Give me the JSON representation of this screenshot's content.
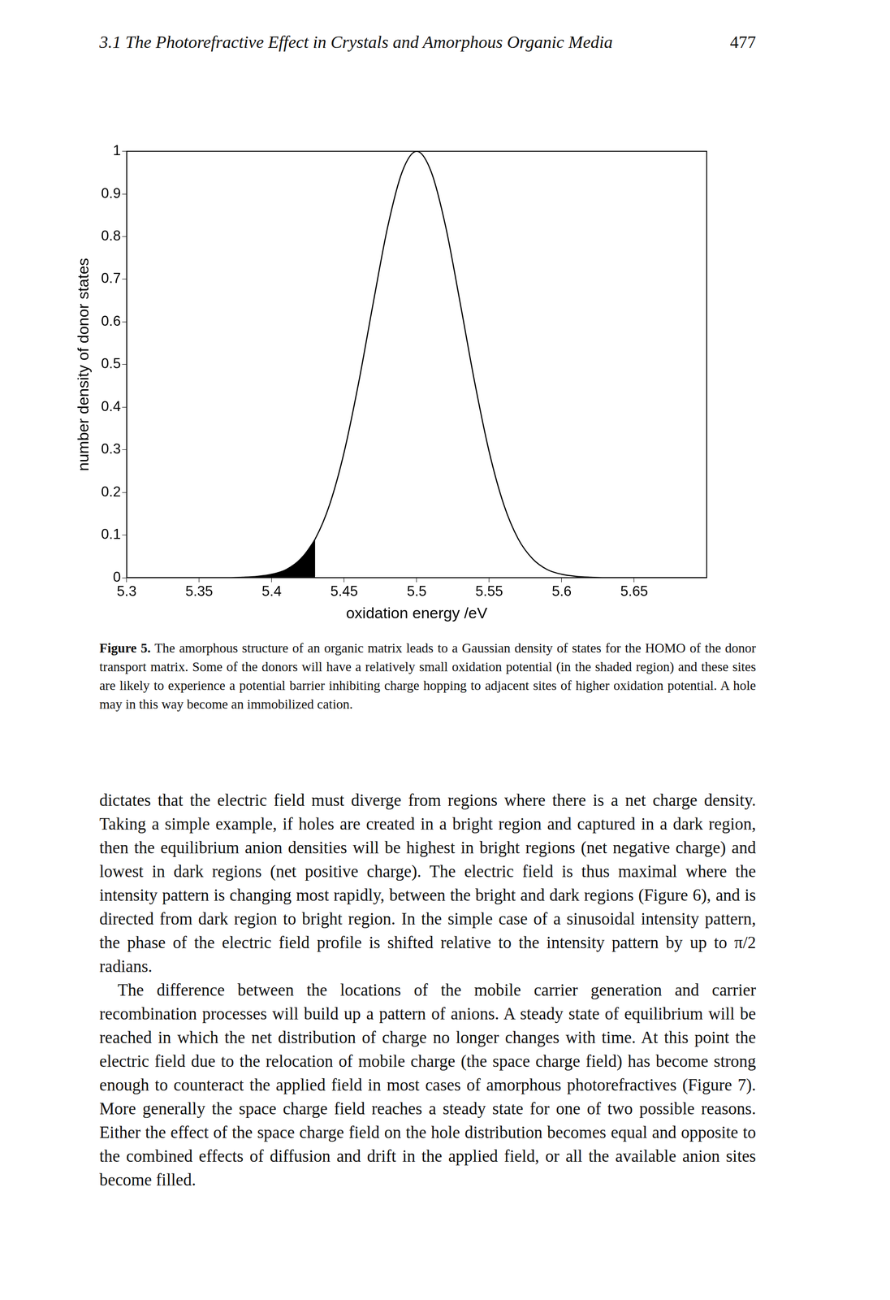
{
  "header": {
    "title": "3.1 The Photorefractive Effect in Crystals and Amorphous Organic Media",
    "page": 477
  },
  "chart_data": {
    "type": "line",
    "xlabel": "oxidation energy /eV",
    "ylabel": "number density of donor states",
    "x": [
      5.3,
      5.31,
      5.32,
      5.33,
      5.34,
      5.35,
      5.36,
      5.37,
      5.38,
      5.39,
      5.4,
      5.41,
      5.42,
      5.43,
      5.44,
      5.45,
      5.46,
      5.47,
      5.48,
      5.49,
      5.5,
      5.51,
      5.52,
      5.53,
      5.54,
      5.55,
      5.56,
      5.57,
      5.58,
      5.59,
      5.6,
      5.61,
      5.62,
      5.63,
      5.64,
      5.65,
      5.66,
      5.67,
      5.68,
      5.69,
      5.7
    ],
    "values": [
      0,
      0,
      0,
      0,
      0,
      0,
      0,
      0,
      0.001,
      0.003,
      0.008,
      0.019,
      0.044,
      0.091,
      0.172,
      0.295,
      0.458,
      0.644,
      0.823,
      0.952,
      1,
      0.952,
      0.823,
      0.644,
      0.458,
      0.295,
      0.172,
      0.091,
      0.044,
      0.019,
      0.008,
      0.003,
      0.001,
      0,
      0,
      0,
      0,
      0,
      0,
      0,
      0
    ],
    "color": "#000000",
    "shaded_region": {
      "from": 5.3,
      "to": 5.43,
      "color": "#000000"
    },
    "xlim": [
      5.3,
      5.7
    ],
    "ylim": [
      0,
      1
    ],
    "xticks": [
      5.3,
      5.35,
      5.4,
      5.45,
      5.5,
      5.55,
      5.6,
      5.65
    ],
    "yticks": [
      0,
      0.1,
      0.2,
      0.3,
      0.4,
      0.5,
      0.6,
      0.7,
      0.8,
      0.9,
      1
    ],
    "grid": false
  },
  "caption": {
    "label": "Figure 5.",
    "text": "The amorphous structure of an organic matrix leads to a Gaussian density of states for the HOMO of the donor transport matrix. Some of the donors will have a relatively small oxidation potential (in the shaded region) and these sites are likely to experience a potential barrier inhibiting charge hopping to adjacent sites of higher oxidation potential. A hole may in this way become an immobilized cation."
  },
  "body": [
    "dictates that the electric field must diverge from regions where there is a net charge density. Taking a simple example, if holes are created in a bright region and captured in a dark region, then the equilibrium anion densities will be highest in bright regions (net negative charge) and lowest in dark regions (net positive charge). The electric field is thus maximal where the intensity pattern is changing most rapidly, between the bright and dark regions (Figure 6), and is directed from dark region to bright region. In the simple case of a sinusoidal intensity pattern, the phase of the electric field profile is shifted relative to the intensity pattern by up to π/2 radians.",
    "The difference between the locations of the mobile carrier generation and carrier recombination processes will build up a pattern of anions. A steady state of equilibrium will be reached in which the net distribution of charge no longer changes with time. At this point the electric field due to the relocation of mobile charge (the space charge field) has become strong enough to counteract the applied field in most cases of amorphous photorefractives (Figure 7). More generally the space charge field reaches a steady state for one of two possible reasons. Either the effect of the space charge field on the hole distribution becomes equal and opposite to the combined effects of diffusion and drift in the applied field, or all the available anion sites become filled."
  ]
}
